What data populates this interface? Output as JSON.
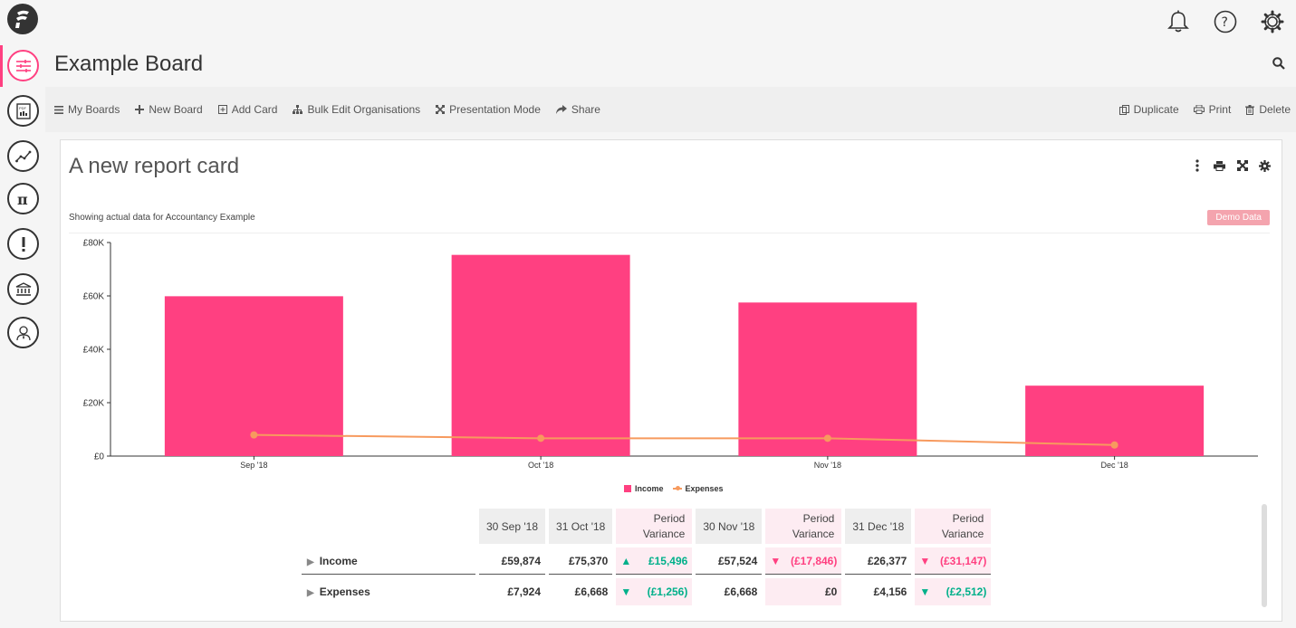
{
  "header": {
    "board_title": "Example Board"
  },
  "toolbar": {
    "left": [
      {
        "label": "My Boards",
        "icon": "list-icon"
      },
      {
        "label": "New Board",
        "icon": "plus-icon"
      },
      {
        "label": "Add Card",
        "icon": "plus-square-icon"
      },
      {
        "label": "Bulk Edit Organisations",
        "icon": "sitemap-icon"
      },
      {
        "label": "Presentation Mode",
        "icon": "expand-icon"
      },
      {
        "label": "Share",
        "icon": "share-icon"
      }
    ],
    "right": [
      {
        "label": "Duplicate",
        "icon": "copy-icon"
      },
      {
        "label": "Print",
        "icon": "print-icon"
      },
      {
        "label": "Delete",
        "icon": "trash-icon"
      }
    ]
  },
  "card": {
    "title": "A new report card",
    "subtitle": "Showing actual data for Accountancy Example",
    "badge": "Demo Data"
  },
  "chart_data": {
    "type": "bar",
    "categories": [
      "Sep '18",
      "Oct '18",
      "Nov '18",
      "Dec '18"
    ],
    "series": [
      {
        "name": "Income",
        "type": "bar",
        "color": "#ff4081",
        "values": [
          59874,
          75370,
          57524,
          26377
        ]
      },
      {
        "name": "Expenses",
        "type": "line",
        "color": "#f79a5e",
        "values": [
          7924,
          6668,
          6668,
          4156
        ]
      }
    ],
    "y_ticks": [
      "£0",
      "£20K",
      "£40K",
      "£60K",
      "£80K"
    ],
    "ylim": [
      0,
      80000
    ],
    "legend_position": "bottom-center"
  },
  "table": {
    "headers": [
      "30 Sep '18",
      "31 Oct '18",
      "Period Variance",
      "30 Nov '18",
      "Period Variance",
      "31 Dec '18",
      "Period Variance"
    ],
    "rows": [
      {
        "label": "Income",
        "cells": [
          "£59,874",
          "£75,370",
          "£15,496",
          "£57,524",
          "(£17,846)",
          "£26,377",
          "(£31,147)"
        ],
        "arrows": [
          "up",
          "down",
          "down"
        ]
      },
      {
        "label": "Expenses",
        "cells": [
          "£7,924",
          "£6,668",
          "(£1,256)",
          "£6,668",
          "£0",
          "£4,156",
          "(£2,512)"
        ],
        "arrows": [
          "down",
          "",
          "down"
        ]
      }
    ]
  }
}
